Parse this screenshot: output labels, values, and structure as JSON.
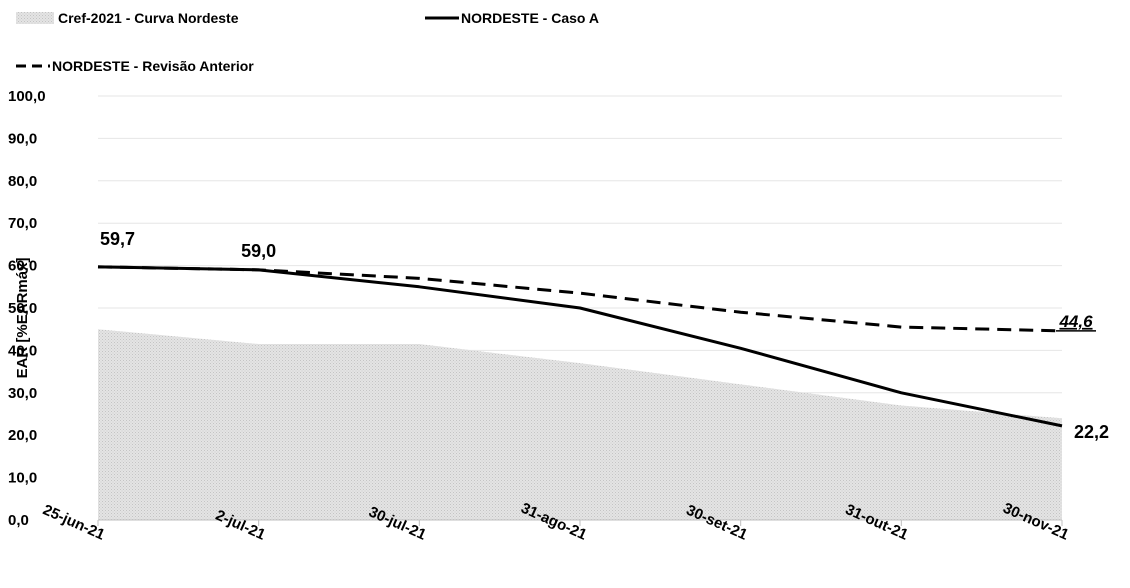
{
  "chart_data": {
    "type": "line",
    "title": "",
    "xlabel": "",
    "ylabel": "EAR [%EARmáx]",
    "ylim": [
      0,
      100
    ],
    "yticks": [
      "0,0",
      "10,0",
      "20,0",
      "30,0",
      "40,0",
      "50,0",
      "60,0",
      "70,0",
      "80,0",
      "90,0",
      "100,0"
    ],
    "ytick_values": [
      0,
      10,
      20,
      30,
      40,
      50,
      60,
      70,
      80,
      90,
      100
    ],
    "categories": [
      "25-jun-21",
      "2-jul-21",
      "30-jul-21",
      "31-ago-21",
      "30-set-21",
      "31-out-21",
      "30-nov-21"
    ],
    "grid": true,
    "legend_position": "top-left",
    "series": [
      {
        "name": "Cref-2021 - Curva Nordeste",
        "style": "area",
        "color": "#d9d9d9",
        "values": [
          45,
          41.5,
          41.5,
          37,
          32,
          27,
          24
        ]
      },
      {
        "name": "NORDESTE - Caso A",
        "style": "solid",
        "color": "#000000",
        "values": [
          59.7,
          59.0,
          55,
          50,
          40.5,
          30,
          22.2
        ]
      },
      {
        "name": "NORDESTE - Revisão Anterior",
        "style": "dashed",
        "color": "#000000",
        "values": [
          59.7,
          59.0,
          57,
          53.5,
          49,
          45.5,
          44.6
        ]
      }
    ],
    "annotations": [
      {
        "text": "59,7",
        "category_index": 0,
        "value": 59.7,
        "italic": false
      },
      {
        "text": "59,0",
        "category_index": 1,
        "value": 59.0,
        "italic": false
      },
      {
        "text": "44,6",
        "category_index": 6,
        "value": 44.6,
        "italic": true
      },
      {
        "text": "22,2",
        "category_index": 6,
        "value": 22.2,
        "italic": false
      }
    ]
  }
}
